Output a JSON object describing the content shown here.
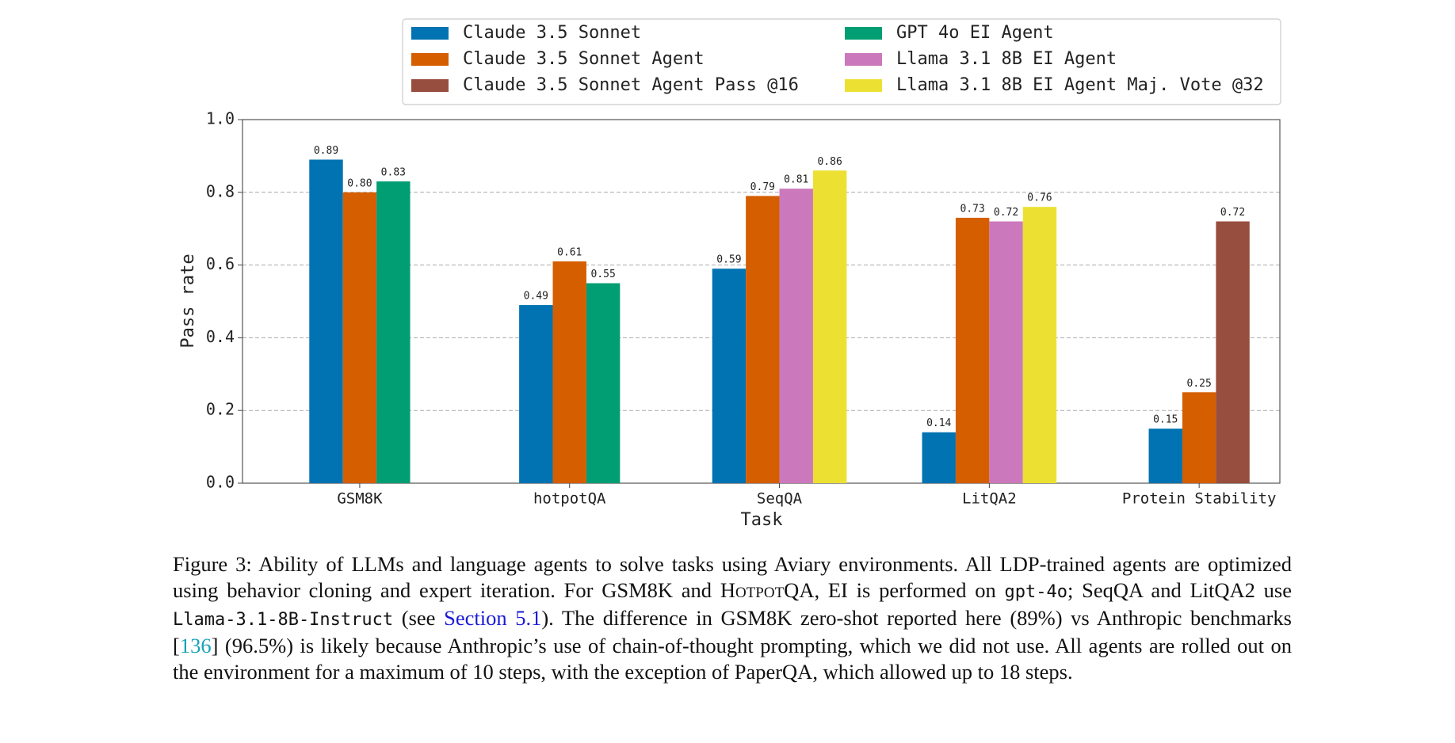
{
  "chart_data": {
    "type": "bar",
    "x_label": "Task",
    "y_label": "Pass rate",
    "categories": [
      "GSM8K",
      "hotpotQA",
      "SeqQA",
      "LitQA2",
      "Protein Stability"
    ],
    "series": [
      {
        "name": "Claude 3.5 Sonnet",
        "color": "#0173b2",
        "values": [
          0.89,
          0.49,
          0.59,
          0.14,
          0.15
        ],
        "value_labels": [
          "0.89",
          "0.49",
          "0.59",
          "0.14",
          "0.15"
        ]
      },
      {
        "name": "Claude 3.5 Sonnet Agent",
        "color": "#d55e00",
        "values": [
          0.8,
          0.61,
          0.79,
          0.73,
          0.25
        ],
        "value_labels": [
          "0.80",
          "0.61",
          "0.79",
          "0.73",
          "0.25"
        ]
      },
      {
        "name": "Claude 3.5 Sonnet Agent Pass @16",
        "color": "#984e3e",
        "values": [
          null,
          null,
          null,
          null,
          0.72
        ],
        "value_labels": [
          null,
          null,
          null,
          null,
          "0.72"
        ]
      },
      {
        "name": "GPT 4o EI Agent",
        "color": "#029e73",
        "values": [
          0.83,
          0.55,
          null,
          null,
          null
        ],
        "value_labels": [
          "0.83",
          "0.55",
          null,
          null,
          null
        ]
      },
      {
        "name": "Llama 3.1 8B EI Agent",
        "color": "#cc78bc",
        "values": [
          null,
          null,
          0.81,
          0.72,
          null
        ],
        "value_labels": [
          null,
          null,
          "0.81",
          "0.72",
          null
        ]
      },
      {
        "name": "Llama 3.1 8B EI Agent Maj. Vote @32",
        "color": "#ece133",
        "values": [
          null,
          null,
          0.86,
          0.76,
          null
        ],
        "value_labels": [
          null,
          null,
          "0.86",
          "0.76",
          null
        ]
      }
    ],
    "ylim": [
      0,
      1
    ],
    "yticks": [
      {
        "value": 0,
        "label": "0.0"
      },
      {
        "value": 0.2,
        "label": "0.2"
      },
      {
        "value": 0.4,
        "label": "0.4"
      },
      {
        "value": 0.6,
        "label": "0.6"
      },
      {
        "value": 0.8,
        "label": "0.8"
      },
      {
        "value": 1,
        "label": "1.0"
      }
    ],
    "grid": true,
    "legend": "top"
  },
  "caption": [
    "Figure 3: Ability of LLMs and language agents to solve tasks using Aviary environments. All LDP-trained agents are optimized using behavior cloning and expert iteration. For GSM8K and ",
    "HotpotQA",
    ", EI is performed on ",
    "gpt-4o",
    "; SeqQA and LitQA2 use ",
    "Llama-3.1-8B-Instruct",
    " (see ",
    "Section 5.1",
    "). The difference in GSM8K zero-shot reported here (89%) vs Anthropic benchmarks [",
    "136",
    "] (96.5%) is likely because Anthropic’s use of chain-of-thought prompting, which we did not use. All agents are rolled out on the environment for a maximum of 10 steps, with the exception of PaperQA, which allowed up to 18 steps."
  ]
}
